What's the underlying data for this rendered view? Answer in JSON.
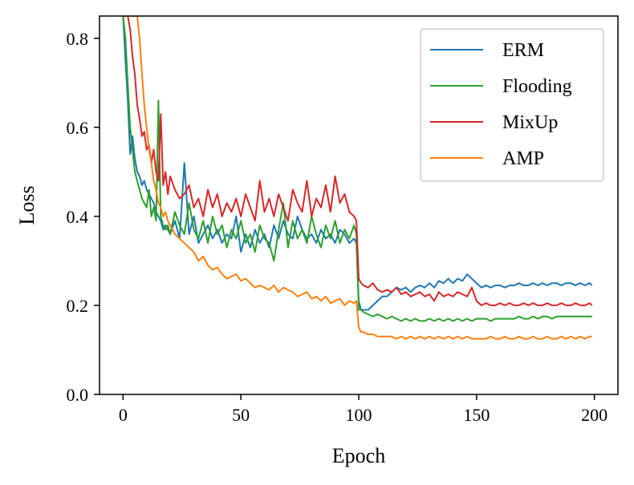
{
  "chart_data": {
    "type": "line",
    "title": "",
    "xlabel": "Epoch",
    "ylabel": "Loss",
    "xlim": [
      -10,
      210
    ],
    "ylim": [
      0.0,
      0.85
    ],
    "xticks": [
      0,
      50,
      100,
      150,
      200
    ],
    "xtick_labels": [
      "0",
      "50",
      "100",
      "150",
      "200"
    ],
    "yticks": [
      0.0,
      0.2,
      0.4,
      0.6,
      0.8
    ],
    "ytick_labels": [
      "0.0",
      "0.2",
      "0.4",
      "0.6",
      "0.8"
    ],
    "legend_position": "top-right",
    "series": [
      {
        "name": "ERM",
        "color": "#1f77b4",
        "x": [
          0,
          1,
          2,
          3,
          4,
          5,
          6,
          7,
          8,
          9,
          10,
          11,
          12,
          13,
          14,
          15,
          16,
          17,
          18,
          19,
          20,
          22,
          24,
          26,
          28,
          30,
          32,
          34,
          36,
          38,
          40,
          42,
          44,
          46,
          48,
          50,
          52,
          54,
          56,
          58,
          60,
          62,
          64,
          66,
          68,
          70,
          72,
          74,
          76,
          78,
          80,
          82,
          84,
          86,
          88,
          90,
          92,
          94,
          96,
          98,
          99,
          100,
          101,
          102,
          104,
          106,
          108,
          110,
          112,
          114,
          116,
          118,
          120,
          122,
          124,
          126,
          128,
          130,
          132,
          134,
          136,
          138,
          140,
          142,
          144,
          146,
          148,
          150,
          152,
          154,
          156,
          158,
          160,
          162,
          164,
          166,
          168,
          170,
          172,
          174,
          176,
          178,
          180,
          182,
          184,
          186,
          188,
          190,
          192,
          194,
          196,
          198,
          199
        ],
        "y": [
          0.85,
          0.75,
          0.66,
          0.54,
          0.58,
          0.53,
          0.5,
          0.49,
          0.47,
          0.48,
          0.46,
          0.45,
          0.44,
          0.43,
          0.41,
          0.4,
          0.39,
          0.37,
          0.38,
          0.37,
          0.36,
          0.39,
          0.35,
          0.52,
          0.36,
          0.4,
          0.34,
          0.36,
          0.38,
          0.35,
          0.37,
          0.34,
          0.36,
          0.35,
          0.4,
          0.32,
          0.36,
          0.33,
          0.37,
          0.34,
          0.36,
          0.33,
          0.38,
          0.35,
          0.39,
          0.36,
          0.35,
          0.4,
          0.37,
          0.35,
          0.36,
          0.34,
          0.37,
          0.35,
          0.36,
          0.34,
          0.37,
          0.36,
          0.34,
          0.35,
          0.34,
          0.21,
          0.19,
          0.19,
          0.19,
          0.2,
          0.21,
          0.22,
          0.22,
          0.23,
          0.24,
          0.235,
          0.24,
          0.23,
          0.24,
          0.245,
          0.24,
          0.25,
          0.24,
          0.255,
          0.25,
          0.26,
          0.25,
          0.26,
          0.255,
          0.27,
          0.26,
          0.25,
          0.24,
          0.245,
          0.24,
          0.245,
          0.245,
          0.24,
          0.245,
          0.245,
          0.25,
          0.245,
          0.245,
          0.25,
          0.245,
          0.25,
          0.245,
          0.25,
          0.25,
          0.245,
          0.25,
          0.25,
          0.245,
          0.25,
          0.245,
          0.25,
          0.245
        ]
      },
      {
        "name": "Flooding",
        "color": "#2ca02c",
        "x": [
          0,
          1,
          2,
          3,
          4,
          5,
          6,
          7,
          8,
          9,
          10,
          11,
          12,
          13,
          14,
          15,
          16,
          17,
          18,
          19,
          20,
          22,
          24,
          26,
          28,
          30,
          32,
          34,
          36,
          38,
          40,
          42,
          44,
          46,
          48,
          50,
          52,
          54,
          56,
          58,
          60,
          62,
          64,
          66,
          68,
          70,
          72,
          74,
          76,
          78,
          80,
          82,
          84,
          86,
          88,
          90,
          92,
          94,
          96,
          98,
          99,
          100,
          101,
          102,
          104,
          106,
          108,
          110,
          112,
          114,
          116,
          118,
          120,
          122,
          124,
          126,
          128,
          130,
          132,
          134,
          136,
          138,
          140,
          142,
          144,
          146,
          148,
          150,
          152,
          154,
          156,
          158,
          160,
          162,
          164,
          166,
          168,
          170,
          172,
          174,
          176,
          178,
          180,
          182,
          184,
          186,
          188,
          190,
          192,
          194,
          196,
          198,
          199
        ],
        "y": [
          0.85,
          0.8,
          0.7,
          0.6,
          0.55,
          0.5,
          0.48,
          0.46,
          0.44,
          0.43,
          0.42,
          0.46,
          0.4,
          0.42,
          0.39,
          0.66,
          0.4,
          0.38,
          0.37,
          0.38,
          0.36,
          0.41,
          0.38,
          0.36,
          0.43,
          0.37,
          0.35,
          0.39,
          0.34,
          0.4,
          0.36,
          0.38,
          0.33,
          0.37,
          0.35,
          0.39,
          0.34,
          0.36,
          0.32,
          0.38,
          0.35,
          0.34,
          0.3,
          0.37,
          0.43,
          0.33,
          0.39,
          0.35,
          0.37,
          0.34,
          0.4,
          0.36,
          0.33,
          0.38,
          0.35,
          0.39,
          0.34,
          0.37,
          0.35,
          0.38,
          0.36,
          0.19,
          0.19,
          0.185,
          0.18,
          0.175,
          0.18,
          0.175,
          0.17,
          0.175,
          0.17,
          0.165,
          0.17,
          0.165,
          0.17,
          0.165,
          0.165,
          0.17,
          0.165,
          0.17,
          0.165,
          0.17,
          0.165,
          0.17,
          0.165,
          0.17,
          0.165,
          0.17,
          0.17,
          0.17,
          0.165,
          0.17,
          0.17,
          0.17,
          0.17,
          0.17,
          0.175,
          0.17,
          0.17,
          0.175,
          0.17,
          0.175,
          0.175,
          0.17,
          0.175,
          0.175,
          0.175,
          0.175,
          0.175,
          0.175,
          0.175,
          0.175,
          0.175
        ]
      },
      {
        "name": "MixUp",
        "color": "#d62728",
        "x": [
          0,
          1,
          2,
          3,
          4,
          5,
          6,
          7,
          8,
          9,
          10,
          11,
          12,
          13,
          14,
          15,
          16,
          17,
          18,
          19,
          20,
          22,
          24,
          26,
          28,
          30,
          32,
          34,
          36,
          38,
          40,
          42,
          44,
          46,
          48,
          50,
          52,
          54,
          56,
          58,
          60,
          62,
          64,
          66,
          68,
          70,
          72,
          74,
          76,
          78,
          80,
          82,
          84,
          86,
          88,
          90,
          92,
          94,
          96,
          98,
          99,
          100,
          101,
          102,
          104,
          106,
          108,
          110,
          112,
          114,
          116,
          118,
          120,
          122,
          124,
          126,
          128,
          130,
          132,
          134,
          136,
          138,
          140,
          142,
          144,
          146,
          148,
          150,
          152,
          154,
          156,
          158,
          160,
          162,
          164,
          166,
          168,
          170,
          172,
          174,
          176,
          178,
          180,
          182,
          184,
          186,
          188,
          190,
          192,
          194,
          196,
          198,
          199
        ],
        "y": [
          0.85,
          0.85,
          0.85,
          0.82,
          0.76,
          0.72,
          0.65,
          0.62,
          0.58,
          0.59,
          0.55,
          0.56,
          0.52,
          0.55,
          0.5,
          0.48,
          0.63,
          0.47,
          0.5,
          0.45,
          0.49,
          0.46,
          0.44,
          0.45,
          0.47,
          0.42,
          0.44,
          0.4,
          0.46,
          0.42,
          0.45,
          0.4,
          0.43,
          0.41,
          0.44,
          0.4,
          0.45,
          0.42,
          0.39,
          0.48,
          0.41,
          0.44,
          0.4,
          0.45,
          0.42,
          0.39,
          0.46,
          0.43,
          0.41,
          0.48,
          0.4,
          0.44,
          0.42,
          0.47,
          0.41,
          0.49,
          0.43,
          0.45,
          0.41,
          0.4,
          0.39,
          0.26,
          0.25,
          0.245,
          0.24,
          0.25,
          0.235,
          0.23,
          0.235,
          0.23,
          0.24,
          0.225,
          0.23,
          0.22,
          0.225,
          0.23,
          0.22,
          0.225,
          0.21,
          0.23,
          0.22,
          0.225,
          0.22,
          0.23,
          0.225,
          0.22,
          0.24,
          0.21,
          0.2,
          0.205,
          0.2,
          0.2,
          0.205,
          0.2,
          0.205,
          0.2,
          0.2,
          0.205,
          0.2,
          0.205,
          0.2,
          0.2,
          0.205,
          0.2,
          0.2,
          0.205,
          0.2,
          0.2,
          0.205,
          0.2,
          0.2,
          0.205,
          0.2
        ]
      },
      {
        "name": "AMP",
        "color": "#ff7f0e",
        "x": [
          0,
          1,
          2,
          3,
          4,
          5,
          6,
          7,
          8,
          9,
          10,
          11,
          12,
          13,
          14,
          15,
          16,
          17,
          18,
          19,
          20,
          22,
          24,
          26,
          28,
          30,
          32,
          34,
          36,
          38,
          40,
          42,
          44,
          46,
          48,
          50,
          52,
          54,
          56,
          58,
          60,
          62,
          64,
          66,
          68,
          70,
          72,
          74,
          76,
          78,
          80,
          82,
          84,
          86,
          88,
          90,
          92,
          94,
          96,
          98,
          99,
          100,
          101,
          102,
          104,
          106,
          108,
          110,
          112,
          114,
          116,
          118,
          120,
          122,
          124,
          126,
          128,
          130,
          132,
          134,
          136,
          138,
          140,
          142,
          144,
          146,
          148,
          150,
          152,
          154,
          156,
          158,
          160,
          162,
          164,
          166,
          168,
          170,
          172,
          174,
          176,
          178,
          180,
          182,
          184,
          186,
          188,
          190,
          192,
          194,
          196,
          198,
          199
        ],
        "y": [
          0.85,
          0.85,
          0.85,
          0.85,
          0.85,
          0.85,
          0.85,
          0.8,
          0.72,
          0.65,
          0.6,
          0.55,
          0.52,
          0.48,
          0.46,
          0.43,
          0.42,
          0.4,
          0.41,
          0.39,
          0.38,
          0.36,
          0.35,
          0.34,
          0.33,
          0.32,
          0.3,
          0.31,
          0.29,
          0.28,
          0.285,
          0.27,
          0.26,
          0.265,
          0.27,
          0.255,
          0.26,
          0.25,
          0.24,
          0.245,
          0.24,
          0.235,
          0.245,
          0.23,
          0.24,
          0.235,
          0.23,
          0.22,
          0.225,
          0.23,
          0.215,
          0.22,
          0.21,
          0.22,
          0.205,
          0.21,
          0.215,
          0.2,
          0.21,
          0.205,
          0.21,
          0.15,
          0.14,
          0.14,
          0.135,
          0.135,
          0.13,
          0.13,
          0.13,
          0.13,
          0.125,
          0.13,
          0.125,
          0.13,
          0.125,
          0.13,
          0.125,
          0.13,
          0.125,
          0.13,
          0.125,
          0.13,
          0.125,
          0.13,
          0.125,
          0.13,
          0.125,
          0.125,
          0.125,
          0.125,
          0.13,
          0.125,
          0.125,
          0.13,
          0.125,
          0.125,
          0.13,
          0.125,
          0.125,
          0.13,
          0.125,
          0.125,
          0.13,
          0.125,
          0.125,
          0.13,
          0.125,
          0.13,
          0.125,
          0.13,
          0.125,
          0.13,
          0.13
        ]
      }
    ]
  }
}
